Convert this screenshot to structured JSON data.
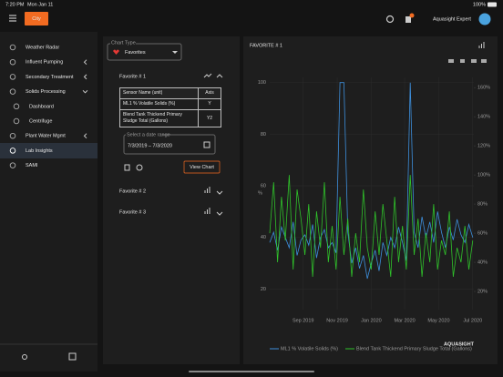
{
  "status_bar": {
    "time": "7:20 PM",
    "date": "Mon Jan 11",
    "battery": "100%"
  },
  "header": {
    "site": "City",
    "user": "Aquasight Expert"
  },
  "sidebar": {
    "items": [
      "Weather Radar",
      "Influent Pumping",
      "Secondary Treatment",
      "Solids Processing",
      "Dashboard",
      "Centrifuge",
      "Plant Water Mgmt",
      "Lab Insights",
      "SAMI"
    ]
  },
  "favorites_panel": {
    "chart_type_label": "Chart Type",
    "chart_type": "Favorites",
    "favorites": [
      {
        "title": "Favorite # 1",
        "table": {
          "headers": [
            "Sensor Name (unit)",
            "Axis"
          ],
          "rows": [
            [
              "ML1 % Volatile Solids (%)",
              "Y"
            ],
            [
              "Blend Tank Thickend Primary Sludge Total (Gallons)",
              "Y2"
            ]
          ]
        },
        "date_range_label": "Select a date range",
        "date_range": "7/3/2019 – 7/3/2020",
        "button": "View Chart"
      },
      {
        "title": "Favorite # 2"
      },
      {
        "title": "Favorite # 3"
      }
    ]
  },
  "brand": "AQUASIGHT",
  "chart_data": {
    "type": "line",
    "title": "FAVORITE # 1",
    "y_label": "%",
    "x": [
      "2019-07-03",
      "2019-07-10",
      "2019-07-17",
      "2019-07-24",
      "2019-07-31",
      "2019-08-07",
      "2019-08-14",
      "2019-08-21",
      "2019-08-28",
      "2019-09-04",
      "2019-09-11",
      "2019-09-18",
      "2019-09-25",
      "2019-10-02",
      "2019-10-09",
      "2019-10-16",
      "2019-10-23",
      "2019-10-30",
      "2019-11-06",
      "2019-11-13",
      "2019-11-20",
      "2019-11-27",
      "2019-12-04",
      "2019-12-11",
      "2019-12-18",
      "2019-12-25",
      "2020-01-01",
      "2020-01-08",
      "2020-01-15",
      "2020-01-22",
      "2020-01-29",
      "2020-02-05",
      "2020-02-12",
      "2020-02-19",
      "2020-02-26",
      "2020-03-04",
      "2020-03-11",
      "2020-03-18",
      "2020-03-25",
      "2020-04-01",
      "2020-04-08",
      "2020-04-15",
      "2020-04-22",
      "2020-04-29",
      "2020-05-06",
      "2020-05-13",
      "2020-05-20",
      "2020-05-27",
      "2020-06-03",
      "2020-06-10",
      "2020-06-17",
      "2020-06-24",
      "2020-07-01"
    ],
    "series": [
      {
        "name": "ML1 % Volatile Solids (%)",
        "color": "#3d8fdc",
        "values": [
          38,
          42,
          35,
          44,
          40,
          36,
          46,
          33,
          39,
          41,
          37,
          45,
          32,
          40,
          43,
          36,
          38,
          34,
          100,
          100,
          42,
          30,
          36,
          28,
          33,
          24,
          30,
          35,
          27,
          38,
          33,
          40,
          36,
          44,
          38,
          31,
          100,
          42,
          36,
          48,
          40,
          46,
          38,
          50,
          42,
          36,
          44,
          39,
          47,
          41,
          38,
          45,
          40
        ]
      },
      {
        "name": "Blend Tank Thickend Primary Sludge Total (Gallons)",
        "color": "#2fc22a",
        "axis": "y2",
        "values": [
          60,
          95,
          40,
          85,
          55,
          100,
          35,
          90,
          70,
          45,
          80,
          30,
          75,
          50,
          95,
          40,
          65,
          35,
          85,
          45,
          70,
          30,
          60,
          40,
          90,
          50,
          35,
          75,
          45,
          80,
          55,
          30,
          85,
          40,
          65,
          35,
          100,
          45,
          70,
          30,
          60,
          40,
          80,
          35,
          55,
          45,
          75,
          30,
          50,
          40,
          65,
          35,
          55
        ]
      }
    ],
    "xlim": [
      "2019-07-03",
      "2020-07-03"
    ],
    "xticks": [
      {
        "value": "2019-09-01",
        "label": "Sep 2019"
      },
      {
        "value": "2019-11-01",
        "label": "Nov 2019"
      },
      {
        "value": "2020-01-01",
        "label": "Jan 2020"
      },
      {
        "value": "2020-03-01",
        "label": "Mar 2020"
      },
      {
        "value": "2020-05-01",
        "label": "May 2020"
      },
      {
        "value": "2020-07-01",
        "label": "Jul 2020"
      }
    ],
    "ylim": [
      12,
      102
    ],
    "yticks": [
      20,
      40,
      60,
      80,
      100
    ],
    "y2lim": [
      7.5,
      167
    ],
    "y2ticks": [
      {
        "value": 20,
        "label": "20%"
      },
      {
        "value": 40,
        "label": "40%"
      },
      {
        "value": 60,
        "label": "60%"
      },
      {
        "value": 80,
        "label": "80%"
      },
      {
        "value": 100,
        "label": "100%"
      },
      {
        "value": 120,
        "label": "120%"
      },
      {
        "value": 140,
        "label": "140%"
      },
      {
        "value": 160,
        "label": "160%"
      }
    ],
    "grid": true,
    "legend": "bottom"
  }
}
